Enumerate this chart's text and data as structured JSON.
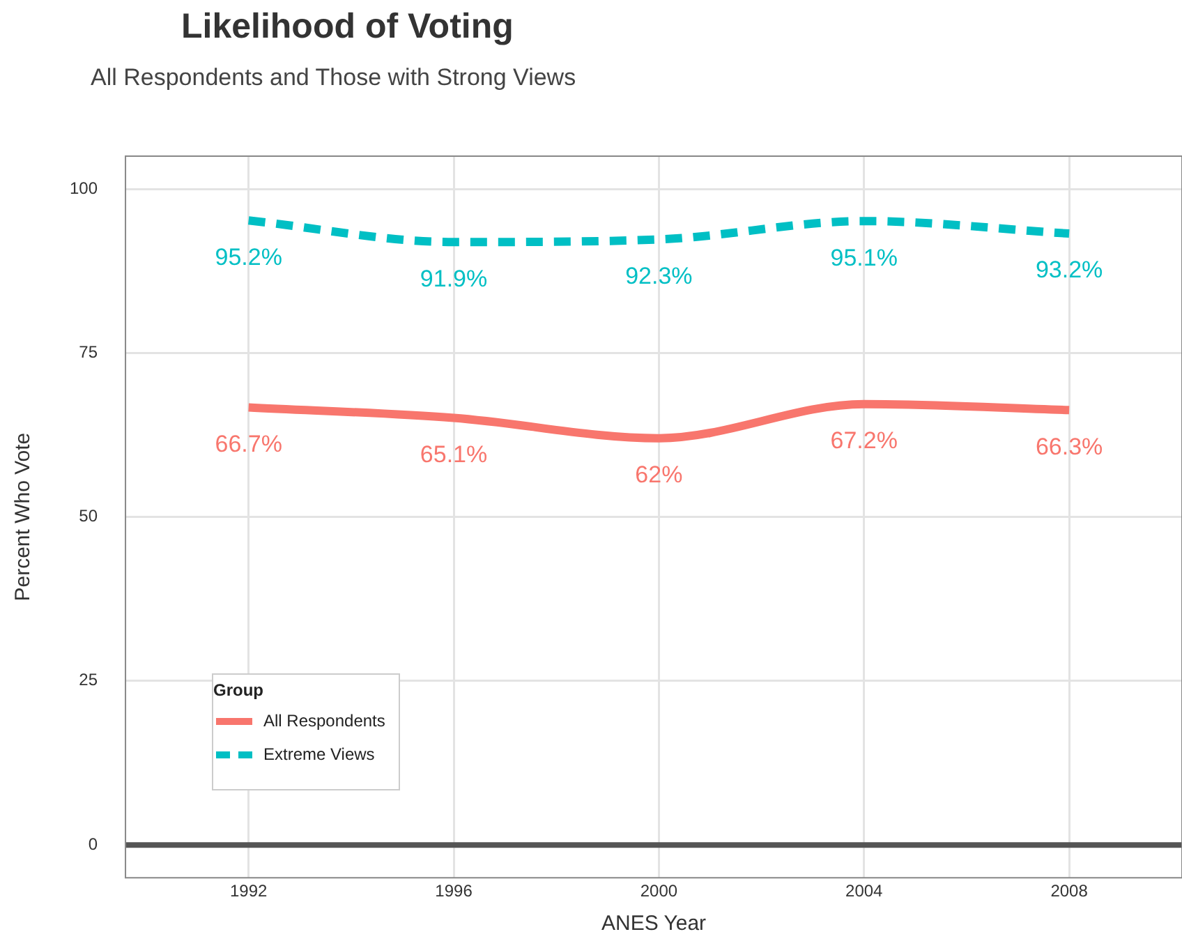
{
  "chart_data": {
    "type": "line",
    "title": "Likelihood of Voting",
    "subtitle": "All Respondents and Those with Strong Views",
    "xlabel": "ANES Year",
    "ylabel": "Percent Who Vote",
    "legend_title": "Group",
    "x": [
      1992,
      1996,
      2000,
      2004,
      2008
    ],
    "series": [
      {
        "name": "All Respondents",
        "color": "#f8766d",
        "line_style": "solid",
        "values": [
          66.7,
          65.1,
          62,
          67.2,
          66.3
        ],
        "value_labels": [
          "66.7%",
          "65.1%",
          "62%",
          "67.2%",
          "66.3%"
        ]
      },
      {
        "name": "Extreme Views",
        "color": "#00bfc4",
        "line_style": "dashed",
        "values": [
          95.2,
          91.9,
          92.3,
          95.1,
          93.2
        ],
        "value_labels": [
          "95.2%",
          "91.9%",
          "92.3%",
          "95.1%",
          "93.2%"
        ]
      }
    ],
    "xlim": [
      1989.6,
      2010.2
    ],
    "xticks": [
      1992,
      1996,
      2000,
      2004,
      2008
    ],
    "ylim": [
      -5,
      105
    ],
    "yticks": [
      0,
      25,
      50,
      75,
      100
    ],
    "ref_lines": [
      {
        "axis": "y",
        "value": 0,
        "color": "#555555"
      }
    ],
    "grid": true,
    "legend": "bottom left",
    "marker": "none"
  }
}
